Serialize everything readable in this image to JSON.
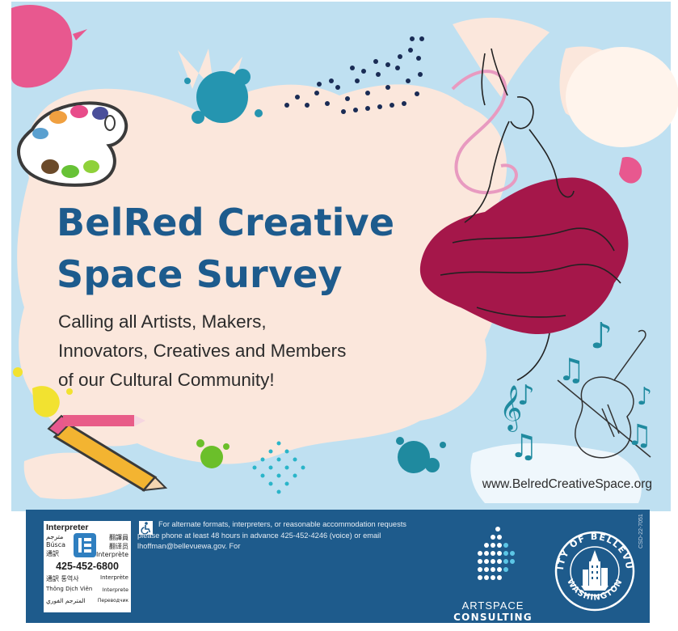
{
  "poster": {
    "headline_line1": "BelRed Creative",
    "headline_line2": "Space Survey",
    "tagline_line1": "Calling all Artists, Makers,",
    "tagline_line2": "Innovators, Creatives and Members",
    "tagline_line3": "of our Cultural Community!",
    "website": "www.BelredCreativeSpace.org"
  },
  "footer": {
    "interpreter": {
      "title": "Interpreter",
      "row1_left": "مترجم",
      "row2_left": "Búsca",
      "row3_left": "通訳",
      "row1_right": "翻譯員",
      "row2_right": "翻译员",
      "row3_right": "Interprète",
      "phone": "425-452-6800",
      "line1": "通訳 통역사",
      "line1_right": "Interprète",
      "line2": "Thông Dịch Viên",
      "line2_right": "Interprete",
      "line3": "المترجم الفوري",
      "line3_right": "Переводчик"
    },
    "accessibility_icon": "wheelchair-icon",
    "notice": "For alternate formats, interpreters, or reasonable accommodation requests please phone at least 48 hours in advance 425-452-4246 (voice) or email lhoffman@bellevuewa.gov. For",
    "artspace_line1": "ARTSPACE",
    "artspace_line2": "CONSULTING",
    "seal_top": "CITY OF BELLEVUE",
    "seal_bottom": "WASHINGTON",
    "code": "CSD-22-7051"
  },
  "colors": {
    "headline": "#1d5b8d",
    "footer": "#1e5b8c",
    "sky": "#bfe0f1",
    "cream": "#fbe7dc",
    "dress": "#a5174a",
    "teal": "#1f8a9f"
  }
}
